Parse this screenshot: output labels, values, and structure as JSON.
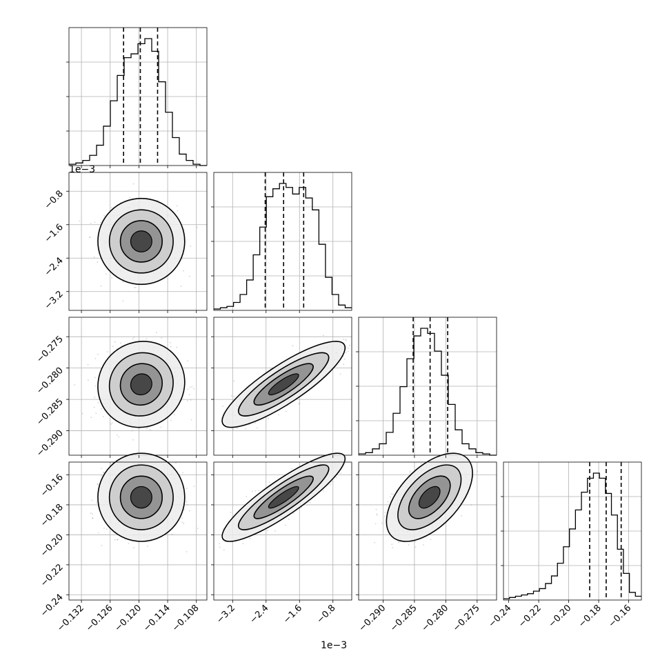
{
  "chart_data": {
    "type": "corner",
    "parameters": 4,
    "grid": true,
    "quantile_lines": "dashed",
    "offset_labels": [
      "1e−3",
      "1e−3"
    ],
    "x_ticks": [
      [
        -0.132,
        -0.126,
        -0.12,
        -0.114,
        -0.108
      ],
      [
        -3.2,
        -2.4,
        -1.6,
        -0.8
      ],
      [
        -0.29,
        -0.285,
        -0.28,
        -0.275
      ],
      [
        -0.24,
        -0.22,
        -0.2,
        -0.18,
        -0.16
      ]
    ],
    "x_tick_labels": [
      [
        "−0.132",
        "−0.126",
        "−0.120",
        "−0.114",
        "−0.108"
      ],
      [
        "−3.2",
        "−2.4",
        "−1.6",
        "−0.8"
      ],
      [
        "−0.290",
        "−0.285",
        "−0.280",
        "−0.275"
      ],
      [
        "−0.24",
        "−0.22",
        "−0.20",
        "−0.18",
        "−0.16"
      ]
    ],
    "y_ticks": [
      null,
      [
        -0.8,
        -1.6,
        -2.4,
        -3.2
      ],
      [
        -0.275,
        -0.28,
        -0.285,
        -0.29
      ],
      [
        -0.16,
        -0.18,
        -0.2,
        -0.22,
        -0.24
      ]
    ],
    "y_tick_labels": [
      null,
      [
        "−0.8",
        "−1.6",
        "−2.4",
        "−3.2"
      ],
      [
        "−0.275",
        "−0.280",
        "−0.285",
        "−0.290"
      ],
      [
        "−0.16",
        "−0.18",
        "−0.20",
        "−0.22",
        "−0.24"
      ]
    ],
    "ranges": [
      [
        -0.1346,
        -0.1058
      ],
      [
        -3.65,
        -0.35
      ],
      [
        -0.2939,
        -0.2719
      ],
      [
        -0.2435,
        -0.1515
      ]
    ],
    "quantiles": [
      [
        -0.1232,
        -0.1197,
        -0.1161
      ],
      [
        -2.42,
        -1.98,
        -1.5
      ],
      [
        -0.2852,
        -0.2825,
        -0.2797
      ],
      [
        -0.186,
        -0.175,
        -0.165
      ]
    ],
    "histograms": [
      [
        1,
        2,
        4,
        8,
        16,
        31,
        51,
        71,
        85,
        88,
        96,
        100,
        90,
        66,
        42,
        22,
        9,
        4,
        1,
        0
      ],
      [
        1,
        2,
        3,
        6,
        12,
        23,
        42,
        63,
        86,
        92,
        96,
        93,
        88,
        93,
        85,
        76,
        50,
        25,
        12,
        4,
        2
      ],
      [
        1,
        2,
        5,
        9,
        18,
        33,
        54,
        76,
        94,
        100,
        96,
        82,
        63,
        40,
        20,
        9,
        5,
        2,
        1,
        0
      ],
      [
        1,
        2,
        3,
        4,
        5,
        7,
        9,
        13,
        19,
        29,
        42,
        56,
        71,
        85,
        96,
        100,
        96,
        84,
        67,
        40,
        21,
        6,
        3
      ]
    ],
    "pairs": [
      {
        "x": 0,
        "y": 1,
        "mean": [
          -0.1195,
          -2.0
        ],
        "sd": [
          0.0037,
          0.42
        ],
        "corr": 0.0
      },
      {
        "x": 0,
        "y": 2,
        "mean": [
          -0.1195,
          -0.2826
        ],
        "sd": [
          0.0037,
          0.0028
        ],
        "corr": 0.05
      },
      {
        "x": 1,
        "y": 2,
        "mean": [
          -1.98,
          -0.2826
        ],
        "sd": [
          0.6,
          0.0028
        ],
        "corr": 0.85
      },
      {
        "x": 0,
        "y": 3,
        "mean": [
          -0.1195,
          -0.175
        ],
        "sd": [
          0.0037,
          0.012
        ],
        "corr": 0.0
      },
      {
        "x": 1,
        "y": 3,
        "mean": [
          -1.98,
          -0.175
        ],
        "sd": [
          0.6,
          0.012
        ],
        "corr": 0.88
      },
      {
        "x": 2,
        "y": 3,
        "mean": [
          -0.2826,
          -0.175
        ],
        "sd": [
          0.0028,
          0.012
        ],
        "corr": 0.55
      }
    ]
  }
}
